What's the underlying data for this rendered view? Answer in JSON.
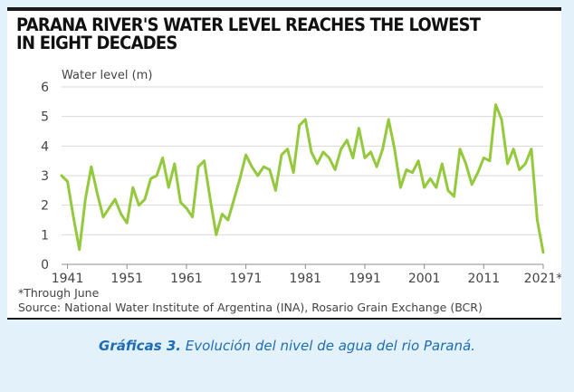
{
  "chart_data": {
    "type": "line",
    "title": "PARANA RIVER'S WATER LEVEL REACHES THE LOWEST\nIN EIGHT DECADES",
    "ylabel": "Water level (m)",
    "ylim": [
      0,
      6
    ],
    "yticks": [
      0,
      1,
      2,
      3,
      4,
      5,
      6
    ],
    "xlim": [
      1940,
      2021
    ],
    "xticks": [
      1941,
      1951,
      1961,
      1971,
      1981,
      1991,
      2001,
      2011,
      2021
    ],
    "xtick_labels": [
      "1941",
      "1951",
      "1961",
      "1971",
      "1981",
      "1991",
      "2001",
      "2011",
      "2021*"
    ],
    "grid": "horizontal",
    "line_color": "#95c93d",
    "x": [
      1940,
      1941,
      1942,
      1943,
      1944,
      1945,
      1946,
      1947,
      1948,
      1949,
      1950,
      1951,
      1952,
      1953,
      1954,
      1955,
      1956,
      1957,
      1958,
      1959,
      1960,
      1961,
      1962,
      1963,
      1964,
      1965,
      1966,
      1967,
      1968,
      1969,
      1970,
      1971,
      1972,
      1973,
      1974,
      1975,
      1976,
      1977,
      1978,
      1979,
      1980,
      1981,
      1982,
      1983,
      1984,
      1985,
      1986,
      1987,
      1988,
      1989,
      1990,
      1991,
      1992,
      1993,
      1994,
      1995,
      1996,
      1997,
      1998,
      1999,
      2000,
      2001,
      2002,
      2003,
      2004,
      2005,
      2006,
      2007,
      2008,
      2009,
      2010,
      2011,
      2012,
      2013,
      2014,
      2015,
      2016,
      2017,
      2018,
      2019,
      2020,
      2021
    ],
    "y": [
      3.0,
      2.8,
      1.6,
      0.5,
      2.2,
      3.3,
      2.4,
      1.6,
      1.9,
      2.2,
      1.7,
      1.4,
      2.6,
      2.0,
      2.2,
      2.9,
      3.0,
      3.6,
      2.6,
      3.4,
      2.1,
      1.9,
      1.6,
      3.3,
      3.5,
      2.2,
      1.0,
      1.7,
      1.5,
      2.2,
      2.9,
      3.7,
      3.3,
      3.0,
      3.3,
      3.2,
      2.5,
      3.7,
      3.9,
      3.1,
      4.7,
      4.9,
      3.8,
      3.4,
      3.8,
      3.6,
      3.2,
      3.9,
      4.2,
      3.6,
      4.6,
      3.6,
      3.8,
      3.3,
      3.9,
      4.9,
      3.9,
      2.6,
      3.2,
      3.1,
      3.5,
      2.6,
      2.9,
      2.6,
      3.4,
      2.5,
      2.3,
      3.9,
      3.4,
      2.7,
      3.1,
      3.6,
      3.5,
      5.4,
      4.9,
      3.4,
      3.9,
      3.2,
      3.4,
      3.9,
      1.5,
      0.4
    ]
  },
  "footnotes": {
    "through": "*Through June",
    "source": "Source: National Water Institute of Argentina (INA), Rosario Grain Exchange (BCR)"
  },
  "caption": {
    "label": "Gráficas 3.",
    "text": " Evolución del nivel de agua del rio Paraná."
  }
}
